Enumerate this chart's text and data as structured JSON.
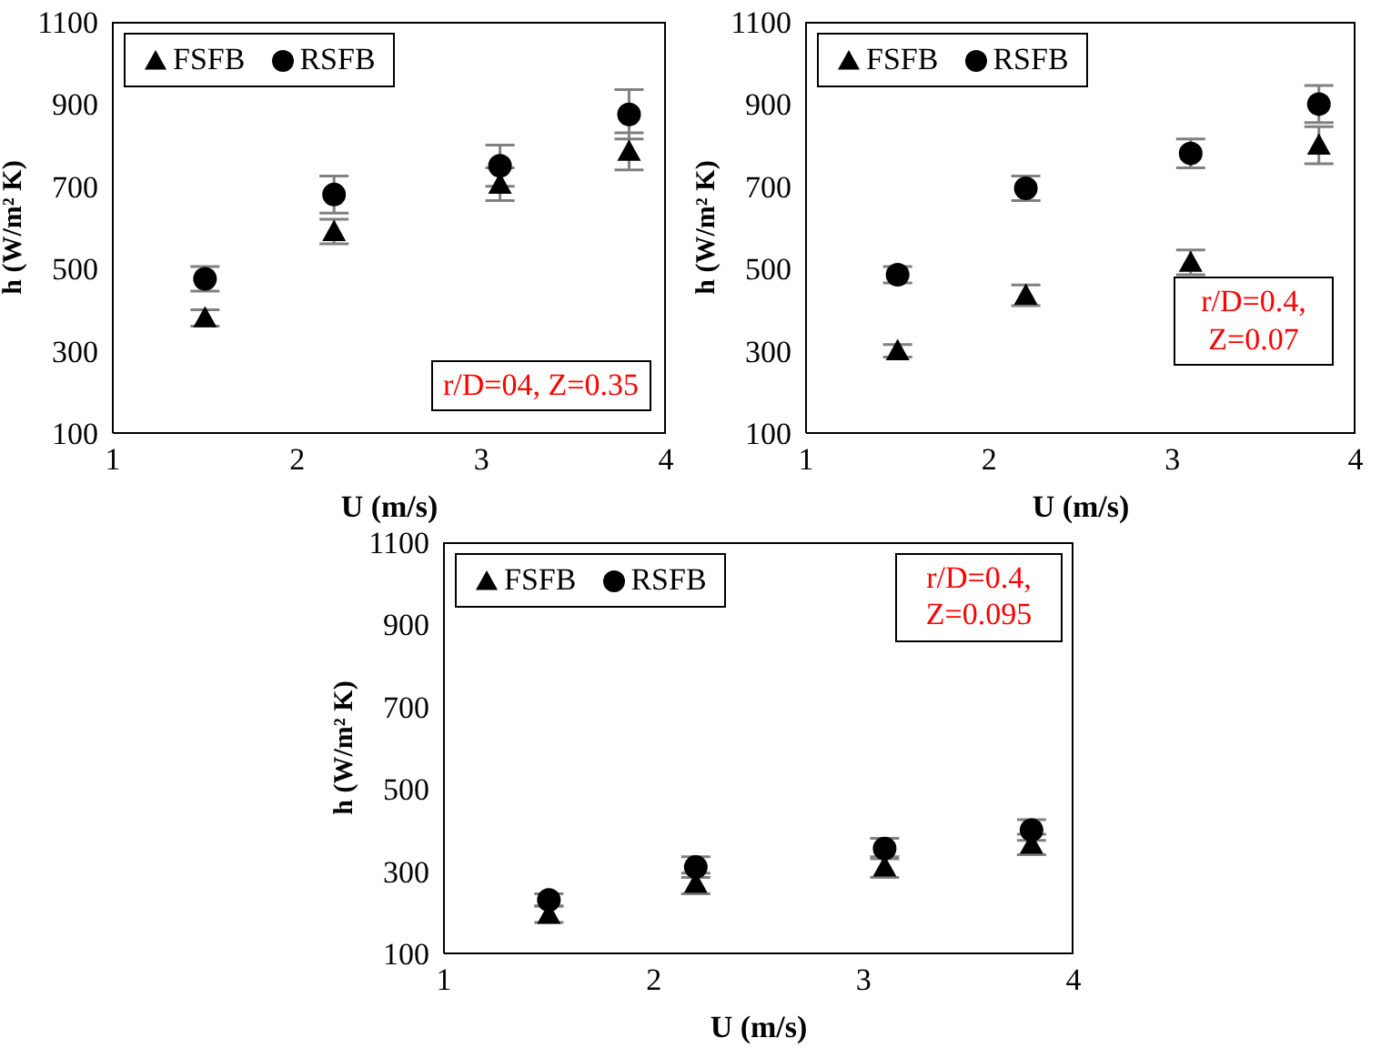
{
  "chart_data": [
    {
      "type": "scatter",
      "xlabel": "U (m/s)",
      "ylabel": "h  (W/m² K)",
      "xlim": [
        1,
        4
      ],
      "xticks": [
        1,
        2,
        3,
        4
      ],
      "ylim": [
        100,
        1100
      ],
      "yticks": [
        100,
        300,
        500,
        700,
        900,
        1100
      ],
      "grid": false,
      "legend": "top left",
      "annotations": [
        "r/D=04, Z=0.35"
      ],
      "x": [
        1.5,
        2.2,
        3.1,
        3.8
      ],
      "series": [
        {
          "name": "FSFB",
          "color": "#000000",
          "marker": "triangle",
          "values": [
            380,
            590,
            705,
            785
          ],
          "errors": [
            20,
            30,
            40,
            45
          ]
        },
        {
          "name": "RSFB",
          "color": "#000000",
          "marker": "circle",
          "values": [
            475,
            680,
            750,
            875
          ],
          "errors": [
            30,
            45,
            50,
            60
          ]
        }
      ]
    },
    {
      "type": "scatter",
      "xlabel": "U (m/s)",
      "ylabel": "h  (W/m² K)",
      "xlim": [
        1,
        4
      ],
      "xticks": [
        1,
        2,
        3,
        4
      ],
      "ylim": [
        100,
        1100
      ],
      "yticks": [
        100,
        300,
        500,
        700,
        900,
        1100
      ],
      "grid": false,
      "legend": "top left",
      "annotations": [
        "r/D=0.4, Z=0.07"
      ],
      "x": [
        1.5,
        2.2,
        3.1,
        3.8
      ],
      "series": [
        {
          "name": "FSFB",
          "color": "#000000",
          "marker": "triangle",
          "values": [
            300,
            435,
            515,
            800
          ],
          "errors": [
            15,
            25,
            30,
            45
          ]
        },
        {
          "name": "RSFB",
          "color": "#000000",
          "marker": "circle",
          "values": [
            485,
            695,
            780,
            900
          ],
          "errors": [
            20,
            30,
            35,
            45
          ]
        }
      ]
    },
    {
      "type": "scatter",
      "xlabel": "U (m/s)",
      "ylabel": "h  (W/m² K)",
      "xlim": [
        1,
        4
      ],
      "xticks": [
        1,
        2,
        3,
        4
      ],
      "ylim": [
        100,
        1100
      ],
      "yticks": [
        100,
        300,
        500,
        700,
        900,
        1100
      ],
      "grid": false,
      "legend": "top left",
      "annotations": [
        "r/D=0.4, Z=0.095"
      ],
      "x": [
        1.5,
        2.2,
        3.1,
        3.8
      ],
      "series": [
        {
          "name": "FSFB",
          "color": "#000000",
          "marker": "triangle",
          "values": [
            195,
            270,
            310,
            365
          ],
          "errors": [
            20,
            25,
            25,
            25
          ]
        },
        {
          "name": "RSFB",
          "color": "#000000",
          "marker": "circle",
          "values": [
            230,
            310,
            355,
            400
          ],
          "errors": [
            15,
            25,
            25,
            25
          ]
        }
      ]
    }
  ]
}
